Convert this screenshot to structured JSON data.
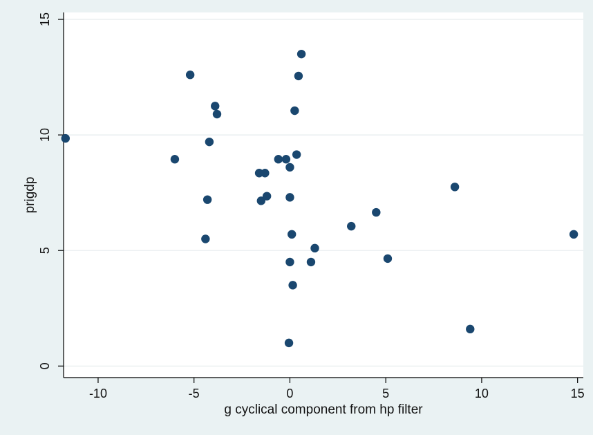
{
  "chart_data": {
    "type": "scatter",
    "title": "",
    "xlabel": "g cyclical component from hp filter",
    "ylabel": "prigdp",
    "xlim": [
      -11.8,
      15.3
    ],
    "ylim": [
      -0.5,
      15.3
    ],
    "xticks": [
      -10,
      -5,
      0,
      5,
      10,
      15
    ],
    "yticks": [
      0,
      5,
      10,
      15
    ],
    "grid": "horizontal",
    "colors": {
      "page_background": "#eaf2f3",
      "plot_background": "#ffffff",
      "marker": "#1a476f",
      "gridline": "#e6eced"
    },
    "points": [
      {
        "x": -11.7,
        "y": 9.85
      },
      {
        "x": -6.0,
        "y": 8.95
      },
      {
        "x": -5.2,
        "y": 12.6
      },
      {
        "x": -4.4,
        "y": 5.5
      },
      {
        "x": -4.3,
        "y": 7.2
      },
      {
        "x": -4.2,
        "y": 9.7
      },
      {
        "x": -3.9,
        "y": 11.25
      },
      {
        "x": -3.8,
        "y": 10.9
      },
      {
        "x": -1.6,
        "y": 8.35
      },
      {
        "x": -1.5,
        "y": 7.15
      },
      {
        "x": -1.3,
        "y": 8.35
      },
      {
        "x": -1.2,
        "y": 7.35
      },
      {
        "x": -0.6,
        "y": 8.95
      },
      {
        "x": -0.2,
        "y": 8.95
      },
      {
        "x": -0.05,
        "y": 1.0
      },
      {
        "x": 0.0,
        "y": 4.5
      },
      {
        "x": 0.0,
        "y": 7.3
      },
      {
        "x": 0.0,
        "y": 8.6
      },
      {
        "x": 0.1,
        "y": 5.7
      },
      {
        "x": 0.15,
        "y": 3.5
      },
      {
        "x": 0.25,
        "y": 11.05
      },
      {
        "x": 0.35,
        "y": 9.15
      },
      {
        "x": 0.45,
        "y": 12.55
      },
      {
        "x": 0.6,
        "y": 13.5
      },
      {
        "x": 1.1,
        "y": 4.5
      },
      {
        "x": 1.3,
        "y": 5.1
      },
      {
        "x": 3.2,
        "y": 6.05
      },
      {
        "x": 4.5,
        "y": 6.65
      },
      {
        "x": 5.1,
        "y": 4.65
      },
      {
        "x": 8.6,
        "y": 7.75
      },
      {
        "x": 9.4,
        "y": 1.6
      },
      {
        "x": 14.8,
        "y": 5.7
      }
    ]
  }
}
